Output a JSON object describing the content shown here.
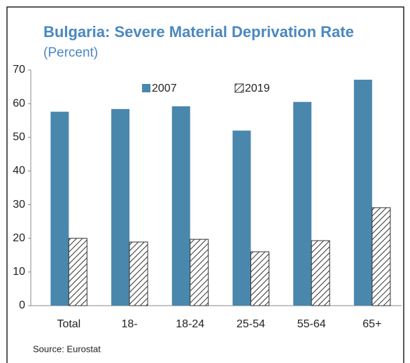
{
  "chart_data": {
    "type": "bar",
    "title": "Bulgaria: Severe Material Deprivation Rate",
    "subtitle": "(Percent)",
    "source": "Source: Eurostat",
    "categories": [
      "Total",
      "18-",
      "18-24",
      "25-54",
      "55-64",
      "65+"
    ],
    "series": [
      {
        "name": "2007",
        "color": "#4a87ad",
        "hatch": false,
        "values": [
          57.6,
          58.4,
          59.2,
          52,
          60.5,
          67.1
        ]
      },
      {
        "name": "2019",
        "color": "#333333",
        "hatch": true,
        "values": [
          20,
          18.9,
          19.7,
          16,
          19.3,
          29.1
        ]
      }
    ],
    "ylim": [
      0,
      70
    ],
    "yticks": [
      0,
      10,
      20,
      30,
      40,
      50,
      60,
      70
    ],
    "grid": false
  }
}
